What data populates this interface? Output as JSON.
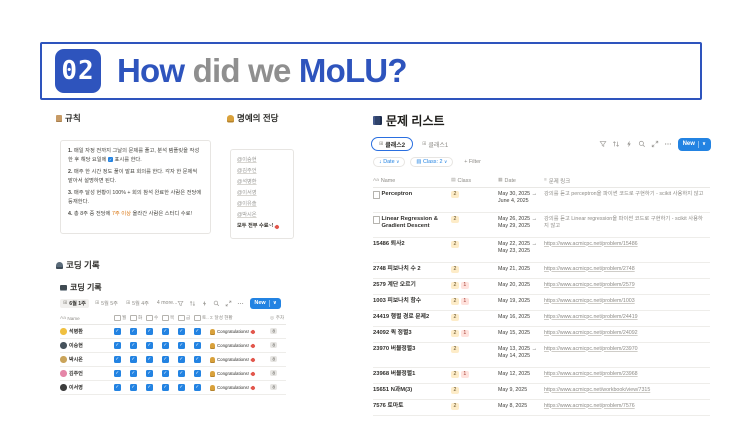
{
  "icons": {
    "chevron_down": "∨",
    "grid": "⊞",
    "sort_arrow": "↓",
    "sigma": "Σ",
    "week_ring": "◎",
    "aa": "Aa",
    "class_col": "▤",
    "date_col": "▦",
    "text_col": "≡",
    "check": "✓"
  },
  "colors": {
    "slide_blue": "#2e54bd",
    "title_gray": "#8f8f8f",
    "notion_blue": "#2383e2",
    "highlight_orange": "#d9730d"
  },
  "slide": {
    "number": "02",
    "title_parts": [
      {
        "text": "How ",
        "color": "#2e54bd"
      },
      {
        "text": "did we ",
        "color": "#8f8f8f"
      },
      {
        "text": "MoLU?",
        "color": "#2e54bd"
      }
    ]
  },
  "rules": {
    "icon": "clipboard-icon",
    "title": "규칙",
    "items": [
      [
        {
          "t": "1. ",
          "b": true
        },
        {
          "t": "매일 자정 전까지 그날의 문제를 풀고, 분석 템플릿을 작성한 후 해당 요일에 "
        },
        {
          "icon": "check-icon"
        },
        {
          "t": " 표시를 한다."
        }
      ],
      [
        {
          "t": "2. ",
          "b": true
        },
        {
          "t": "매주 한 시간 정도 풀이 발표 회의를 한다. 각자 한 문제씩 맡아서 설명하면 된다."
        }
      ],
      [
        {
          "t": "3. ",
          "b": true
        },
        {
          "t": "매주 달성 현황이 100% + 회의 참석 완료한 사람은 전당에 등재한다."
        }
      ],
      [
        {
          "t": "4. ",
          "b": true
        },
        {
          "t": "총 8주 중 전당에 "
        },
        {
          "t": "7주 이상",
          "hl": true
        },
        {
          "t": " 올라간 사람은 스터디 수료!"
        }
      ]
    ]
  },
  "hall_of_fame": {
    "icon": "trophy-icon",
    "title": "명예의 전당",
    "members": [
      "@이승현",
      "@김주언",
      "@석병환",
      "@이서영",
      "@이유솔",
      "@박시온"
    ],
    "footer": "모두 전부 수료~!",
    "footer_icon": "party-popper-icon"
  },
  "coding_log": {
    "section_icon": "technologist-icon",
    "section_title": "코딩 기록",
    "db_icon": "laptop-icon",
    "db_title": "코딩 기록",
    "tabs": [
      {
        "label": "6월 1주",
        "active": true
      },
      {
        "label": "5월 5주",
        "active": false
      },
      {
        "label": "5월 4주",
        "active": false
      }
    ],
    "more_tabs": "4 more...",
    "new_button": "New",
    "columns": {
      "name": "Name",
      "days": [
        "월",
        "화",
        "수",
        "목",
        "금",
        "토.."
      ],
      "status": "달성 현황",
      "week": "주차"
    },
    "rows": [
      {
        "avatar": "smiley-avatar",
        "avatar_color": "#f0c040",
        "name": "석병환",
        "days": [
          true,
          true,
          true,
          true,
          true,
          true
        ],
        "status": "Congratulations!",
        "week": "8"
      },
      {
        "avatar": "penguin-avatar",
        "avatar_color": "#46525c",
        "name": "이승현",
        "days": [
          true,
          true,
          true,
          true,
          true,
          true
        ],
        "status": "Congratulations!",
        "week": "8"
      },
      {
        "avatar": "bear-avatar",
        "avatar_color": "#caa45a",
        "name": "박시온",
        "days": [
          true,
          true,
          true,
          true,
          true,
          true
        ],
        "status": "Congratulations!",
        "week": "8"
      },
      {
        "avatar": "flamingo-avatar",
        "avatar_color": "#e586a8",
        "name": "김주언",
        "days": [
          true,
          true,
          true,
          true,
          true,
          true
        ],
        "status": "Congratulations!",
        "week": "8"
      },
      {
        "avatar": "panda-avatar",
        "avatar_color": "#3d3d3d",
        "name": "이서영",
        "days": [
          true,
          true,
          true,
          true,
          true,
          true
        ],
        "status": "Congratulations!",
        "week": "8"
      }
    ]
  },
  "problem_list": {
    "icon": "books-icon",
    "title": "문제 리스트",
    "tabs": [
      {
        "label": "클래스2",
        "active": true
      },
      {
        "label": "클래스1",
        "active": false
      }
    ],
    "new_button": "New",
    "filters": [
      {
        "icon": "sort_arrow",
        "label": "Date",
        "chevron": true,
        "style": "blue"
      },
      {
        "icon": "class_col",
        "label": "Class: 2",
        "chevron": true,
        "style": "blue"
      },
      {
        "label": "+ Filter",
        "style": "gray"
      }
    ],
    "columns": {
      "name": "Name",
      "class": "Class",
      "date": "Date",
      "link": "문제 링크"
    },
    "badge_colors": {
      "2": {
        "bg": "#fdecc8",
        "fg": "#5f4b22"
      },
      "1": {
        "bg": "#ffe2dd",
        "fg": "#a13b32"
      }
    },
    "rows": [
      {
        "page_icon": true,
        "name": "Perceptron",
        "classes": [
          "2"
        ],
        "date_lines": [
          "May 30, 2025 →",
          "June 4, 2025"
        ],
        "link": "강의를 듣고 perceptron을 파이썬 코드로 구현하기 - scikit 사용하지 않고",
        "is_url": false,
        "tall": true
      },
      {
        "page_icon": true,
        "name": "Linear Regression & Gradient Descent",
        "classes": [
          "2"
        ],
        "date_lines": [
          "May 26, 2025 →",
          "May 29, 2025"
        ],
        "link": "강의를 듣고 Linear regression을 파이썬 코드로 구현하기 - scikit 사용하지 않고",
        "is_url": false,
        "tall": true
      },
      {
        "page_icon": false,
        "name": "15486 퇴사2",
        "classes": [
          "2"
        ],
        "date_lines": [
          "May 22, 2025 →",
          "May 23, 2025"
        ],
        "link": "https://www.acmicpc.net/problem/15486",
        "is_url": true,
        "tall": true
      },
      {
        "page_icon": false,
        "name": "2748 피보나치 수 2",
        "classes": [
          "2"
        ],
        "date_lines": [
          "May 21, 2025"
        ],
        "link": "https://www.acmicpc.net/problem/2748",
        "is_url": true,
        "tall": false
      },
      {
        "page_icon": false,
        "name": "2579 계단 오르기",
        "classes": [
          "2",
          "1"
        ],
        "date_lines": [
          "May 20, 2025"
        ],
        "link": "https://www.acmicpc.net/problem/2579",
        "is_url": true,
        "tall": false
      },
      {
        "page_icon": false,
        "name": "1003 피보나치 함수",
        "classes": [
          "2",
          "1"
        ],
        "date_lines": [
          "May 19, 2025"
        ],
        "link": "https://www.acmicpc.net/problem/1003",
        "is_url": true,
        "tall": false
      },
      {
        "page_icon": false,
        "name": "24419 행렬 경로 문제2",
        "classes": [
          "2"
        ],
        "date_lines": [
          "May 16, 2025"
        ],
        "link": "https://www.acmicpc.net/problem/24419",
        "is_url": true,
        "tall": false
      },
      {
        "page_icon": false,
        "name": "24092 퀵 정렬3",
        "classes": [
          "2",
          "1"
        ],
        "date_lines": [
          "May 15, 2025"
        ],
        "link": "https://www.acmicpc.net/problem/24092",
        "is_url": true,
        "tall": false
      },
      {
        "page_icon": false,
        "name": "23970 버블정렬3",
        "classes": [
          "2"
        ],
        "date_lines": [
          "May 13, 2025 →",
          "May 14, 2025"
        ],
        "link": "https://www.acmicpc.net/problem/23970",
        "is_url": true,
        "tall": true
      },
      {
        "page_icon": false,
        "name": "23968 버블정렬1",
        "classes": [
          "2",
          "1"
        ],
        "date_lines": [
          "May 12, 2025"
        ],
        "link": "https://www.acmicpc.net/problem/23968",
        "is_url": true,
        "tall": false
      },
      {
        "page_icon": false,
        "name": "15651 N과M(3)",
        "classes": [
          "2"
        ],
        "date_lines": [
          "May 9, 2025"
        ],
        "link": "https://www.acmicpc.net/workbook/view/7315",
        "is_url": true,
        "tall": false
      },
      {
        "page_icon": false,
        "name": "7576 토마토",
        "classes": [
          "2"
        ],
        "date_lines": [
          "May 8, 2025"
        ],
        "link": "https://www.acmicpc.net/problem/7576",
        "is_url": true,
        "tall": false
      }
    ]
  },
  "toolbar_icons": [
    "filter-icon",
    "sort-icon",
    "automation-icon",
    "search-icon",
    "expand-icon",
    "more-icon"
  ]
}
